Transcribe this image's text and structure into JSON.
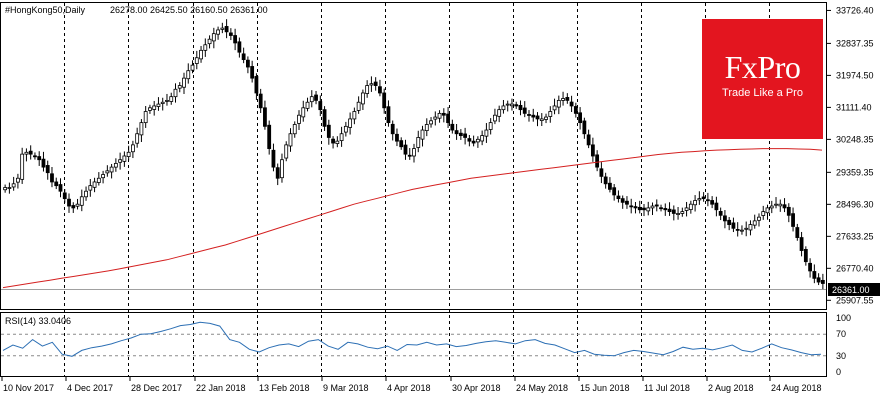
{
  "header": {
    "symbol": "#HongKong50,Daily",
    "ohlc": "26278.00 26425.50 26160.50 26361.00"
  },
  "brand": {
    "name": "FxPro",
    "tagline": "Trade Like a Pro"
  },
  "colors": {
    "candle_bull": "#ffffff",
    "candle_bear": "#000000",
    "ma_line": "#d42020",
    "rsi_line": "#2c6fb4",
    "grid": "#000000",
    "price_line": "#a0a0a0",
    "logo_bg": "#e3151f"
  },
  "chart_data": {
    "type": "candlestick",
    "timeframe": "Daily",
    "symbol": "#HongKong50",
    "ylim": [
      25700,
      33900
    ],
    "price_ticks": [
      "33726.40",
      "32837.35",
      "31974.50",
      "31111.40",
      "30248.35",
      "29359.35",
      "28496.30",
      "27633.25",
      "26770.40",
      "25907.55"
    ],
    "last_price": "26361.00",
    "x_labels": [
      "10 Nov 2017",
      "4 Dec 2017",
      "28 Dec 2017",
      "22 Jan 2018",
      "13 Feb 2018",
      "9 Mar 2018",
      "4 Apr 2018",
      "30 Apr 2018",
      "24 May 2018",
      "15 Jun 2018",
      "11 Jul 2018",
      "2 Aug 2018",
      "24 Aug 2018"
    ],
    "series": [
      {
        "name": "close",
        "values": [
          28950,
          28950,
          29050,
          29200,
          29850,
          29900,
          29850,
          29800,
          29700,
          29500,
          29350,
          29100,
          29000,
          28850,
          28650,
          28450,
          28400,
          28500,
          28700,
          28850,
          29000,
          29100,
          29200,
          29300,
          29400,
          29500,
          29600,
          29700,
          29800,
          29900,
          30100,
          30400,
          30700,
          31000,
          31100,
          31150,
          31200,
          31250,
          31300,
          31400,
          31600,
          31700,
          31900,
          32100,
          32250,
          32450,
          32650,
          32800,
          32950,
          33100,
          33200,
          33250,
          33150,
          33050,
          32850,
          32600,
          32400,
          32200,
          31900,
          31500,
          31100,
          30600,
          30000,
          29500,
          29200,
          29700,
          30100,
          30400,
          30650,
          30900,
          31100,
          31250,
          31400,
          31300,
          31050,
          30600,
          30300,
          30150,
          30200,
          30400,
          30600,
          30800,
          31000,
          31250,
          31500,
          31700,
          31750,
          31700,
          31500,
          31100,
          30700,
          30400,
          30200,
          30050,
          29850,
          29800,
          30000,
          30300,
          30500,
          30650,
          30750,
          30850,
          30950,
          30900,
          30700,
          30500,
          30400,
          30350,
          30300,
          30200,
          30150,
          30250,
          30350,
          30500,
          30700,
          30900,
          31050,
          31150,
          31200,
          31200,
          31150,
          31050,
          30950,
          30900,
          30850,
          30800,
          30800,
          30850,
          31000,
          31150,
          31300,
          31350,
          31300,
          31150,
          30950,
          30700,
          30400,
          30100,
          29800,
          29500,
          29250,
          29050,
          28900,
          28750,
          28650,
          28550,
          28500,
          28450,
          28400,
          28350,
          28350,
          28400,
          28450,
          28450,
          28400,
          28350,
          28300,
          28250,
          28250,
          28300,
          28400,
          28500,
          28600,
          28650,
          28650,
          28600,
          28500,
          28350,
          28200,
          28050,
          27950,
          27850,
          27800,
          27800,
          27850,
          27950,
          28050,
          28150,
          28300,
          28400,
          28450,
          28500,
          28500,
          28400,
          28200,
          27900,
          27600,
          27250,
          26950,
          26700,
          26500,
          26400,
          26361
        ]
      },
      {
        "name": "MA",
        "values": [
          26250,
          26300,
          26350,
          26400,
          26450,
          26500,
          26550,
          26600,
          26650,
          26700,
          26760,
          26820,
          26880,
          26940,
          27000,
          27080,
          27160,
          27240,
          27320,
          27400,
          27500,
          27600,
          27700,
          27800,
          27900,
          28000,
          28100,
          28200,
          28300,
          28400,
          28500,
          28580,
          28660,
          28740,
          28820,
          28900,
          28960,
          29020,
          29080,
          29140,
          29200,
          29240,
          29280,
          29320,
          29360,
          29400,
          29440,
          29480,
          29520,
          29560,
          29600,
          29640,
          29680,
          29720,
          29760,
          29800,
          29840,
          29870,
          29900,
          29920,
          29940,
          29960,
          29970,
          29980,
          29990,
          30000,
          30000,
          30000,
          29990,
          29980,
          29960
        ]
      },
      {
        "name": "RSI(14)",
        "values": [
          40,
          50,
          44,
          60,
          48,
          55,
          33,
          29,
          40,
          45,
          48,
          52,
          58,
          63,
          70,
          71,
          75,
          80,
          86,
          88,
          92,
          90,
          85,
          60,
          55,
          42,
          37,
          45,
          50,
          52,
          47,
          57,
          60,
          48,
          42,
          55,
          52,
          46,
          43,
          48,
          40,
          51,
          50,
          55,
          50,
          52,
          47,
          49,
          53,
          56,
          58,
          55,
          52,
          58,
          60,
          53,
          50,
          43,
          36,
          40,
          33,
          31,
          30,
          36,
          40,
          38,
          35,
          32,
          38,
          46,
          42,
          44,
          41,
          45,
          50,
          40,
          37,
          44,
          52,
          45,
          41,
          36,
          32,
          33
        ]
      }
    ],
    "indicator": {
      "label": "RSI(14) 33.0406",
      "levels": [
        "100",
        "70",
        "30",
        "0"
      ]
    }
  }
}
